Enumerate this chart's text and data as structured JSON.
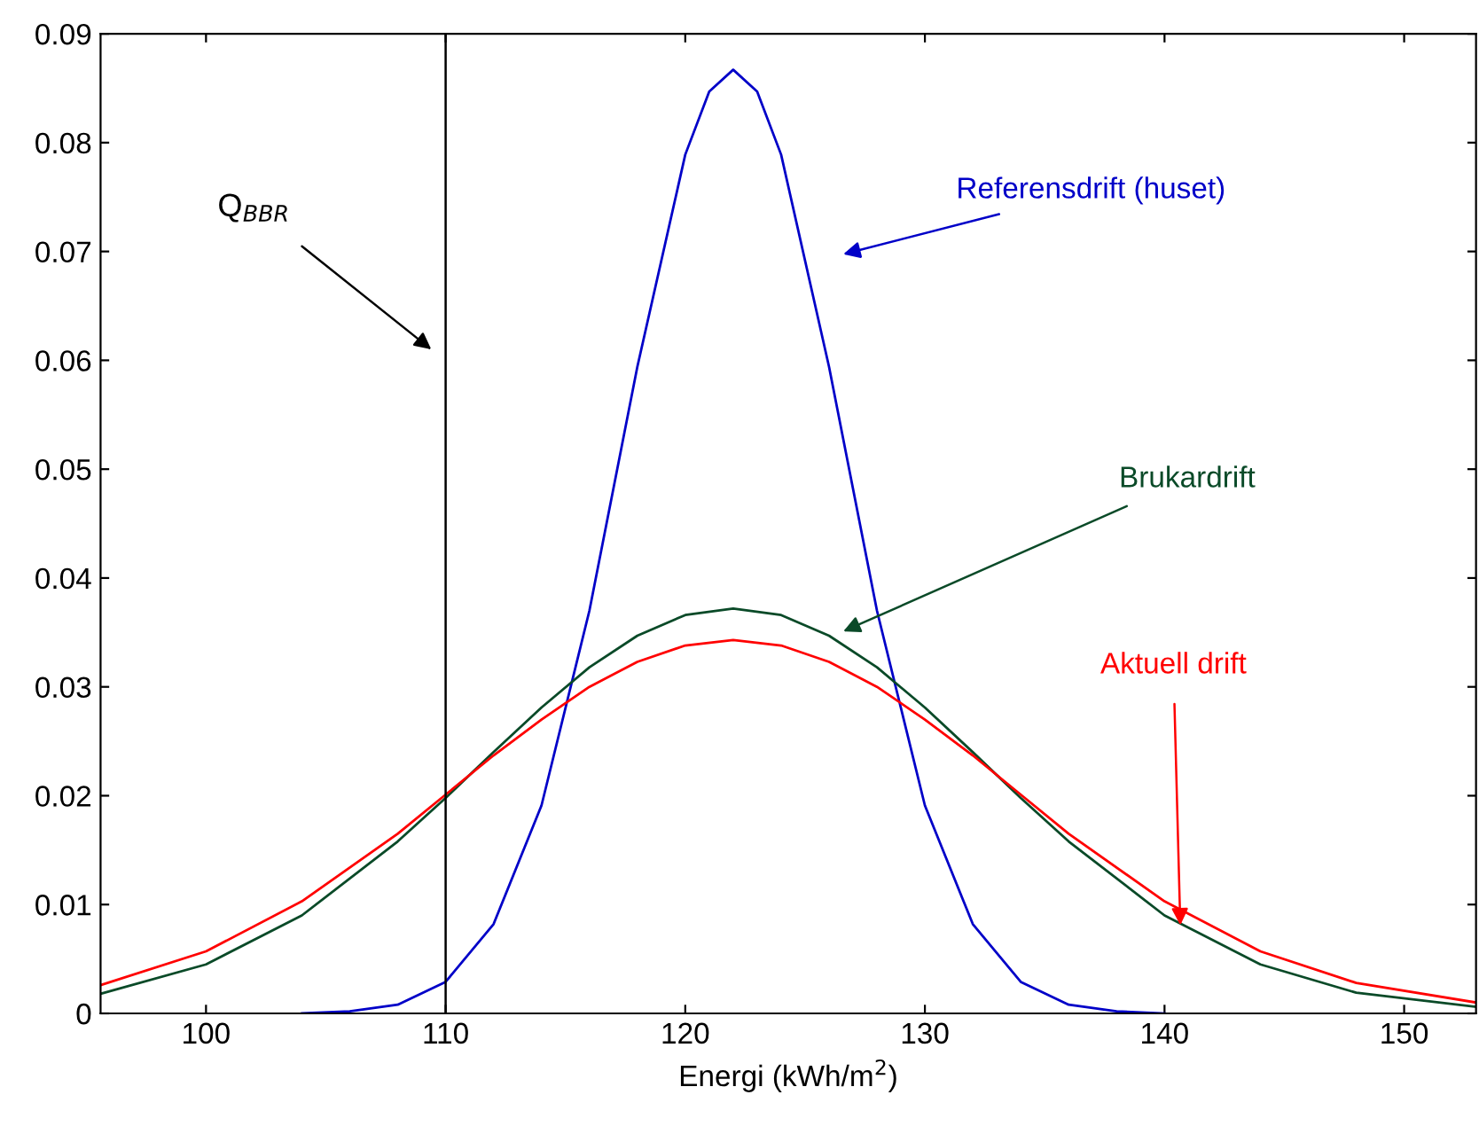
{
  "chart_data": {
    "type": "line",
    "xlabel": "Energi (kWh/m$^{2}$)",
    "xlim": [
      95.6,
      153
    ],
    "xticks": [
      100,
      110,
      120,
      130,
      140,
      150
    ],
    "ylim": [
      0,
      0.09
    ],
    "yticks": [
      0,
      0.01,
      0.02,
      0.03,
      0.04,
      0.05,
      0.06,
      0.07,
      0.08,
      0.09
    ],
    "grid": false,
    "legend": false,
    "marker": "none",
    "line_style": "solid",
    "series": [
      {
        "name": "Referensdrift (huset)",
        "color": "#0000c8",
        "x": [
          104,
          106,
          108,
          110,
          112,
          114,
          116,
          118,
          120,
          121,
          122,
          123,
          124,
          126,
          128,
          130,
          132,
          134,
          136,
          138,
          140
        ],
        "values": [
          0.0,
          0.0002,
          0.0008,
          0.0029,
          0.0082,
          0.0191,
          0.037,
          0.0594,
          0.0789,
          0.0847,
          0.0867,
          0.0847,
          0.0789,
          0.0594,
          0.037,
          0.0191,
          0.0082,
          0.0029,
          0.0008,
          0.0002,
          0.0
        ]
      },
      {
        "name": "Brukardrift",
        "color": "#0a4a28",
        "x": [
          95.6,
          100,
          104,
          108,
          110,
          112,
          114,
          116,
          118,
          120,
          122,
          124,
          126,
          128,
          130,
          132,
          134,
          136,
          140,
          144,
          148,
          153
        ],
        "values": [
          0.0018,
          0.0045,
          0.009,
          0.0158,
          0.0198,
          0.024,
          0.0281,
          0.0318,
          0.0347,
          0.0366,
          0.0372,
          0.0366,
          0.0347,
          0.0318,
          0.0281,
          0.024,
          0.0198,
          0.0158,
          0.009,
          0.0045,
          0.0019,
          0.0006
        ]
      },
      {
        "name": "Aktuell drift",
        "color": "#ff0000",
        "x": [
          95.6,
          100,
          104,
          108,
          110,
          112,
          114,
          116,
          118,
          120,
          122,
          124,
          126,
          128,
          130,
          132,
          134,
          136,
          140,
          144,
          148,
          153
        ],
        "values": [
          0.0026,
          0.0057,
          0.0103,
          0.0165,
          0.0201,
          0.0237,
          0.027,
          0.03,
          0.0323,
          0.0338,
          0.0343,
          0.0338,
          0.0323,
          0.03,
          0.027,
          0.0237,
          0.0201,
          0.0165,
          0.0103,
          0.0057,
          0.0028,
          0.001
        ]
      }
    ],
    "ref_lines": [
      {
        "axis": "x",
        "value": 110,
        "label": "Q$_{BBR}$",
        "color": "#000000",
        "line_style": "solid"
      }
    ]
  }
}
